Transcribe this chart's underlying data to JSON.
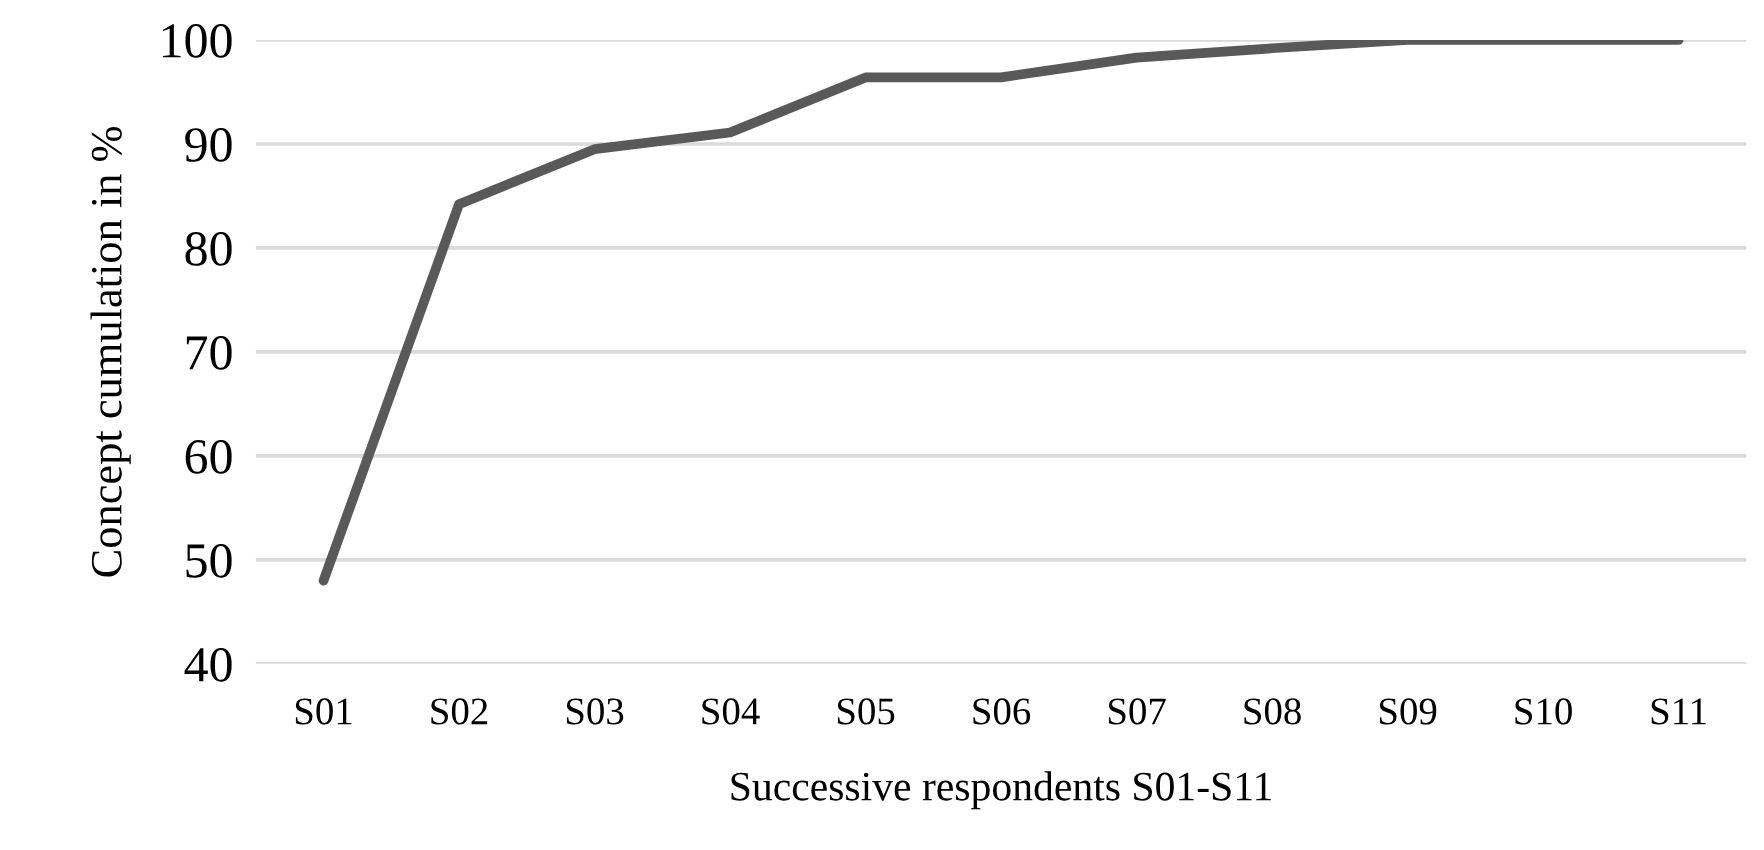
{
  "chart_data": {
    "type": "line",
    "xlabel": "Successive respondents S01-S11",
    "ylabel": "Concept cumulation in %",
    "categories": [
      "S01",
      "S02",
      "S03",
      "S04",
      "S05",
      "S06",
      "S07",
      "S08",
      "S09",
      "S10",
      "S11"
    ],
    "series": [
      {
        "color": "#595959",
        "values": [
          48,
          84.2,
          89.5,
          91.1,
          96.4,
          96.4,
          98.3,
          99.2,
          100,
          100,
          100
        ]
      }
    ],
    "ylim": [
      40,
      100
    ],
    "yticks": [
      40,
      50,
      60,
      70,
      80,
      90,
      100
    ],
    "grid": "y",
    "marker": "none",
    "line_style": "solid",
    "legend": false
  }
}
